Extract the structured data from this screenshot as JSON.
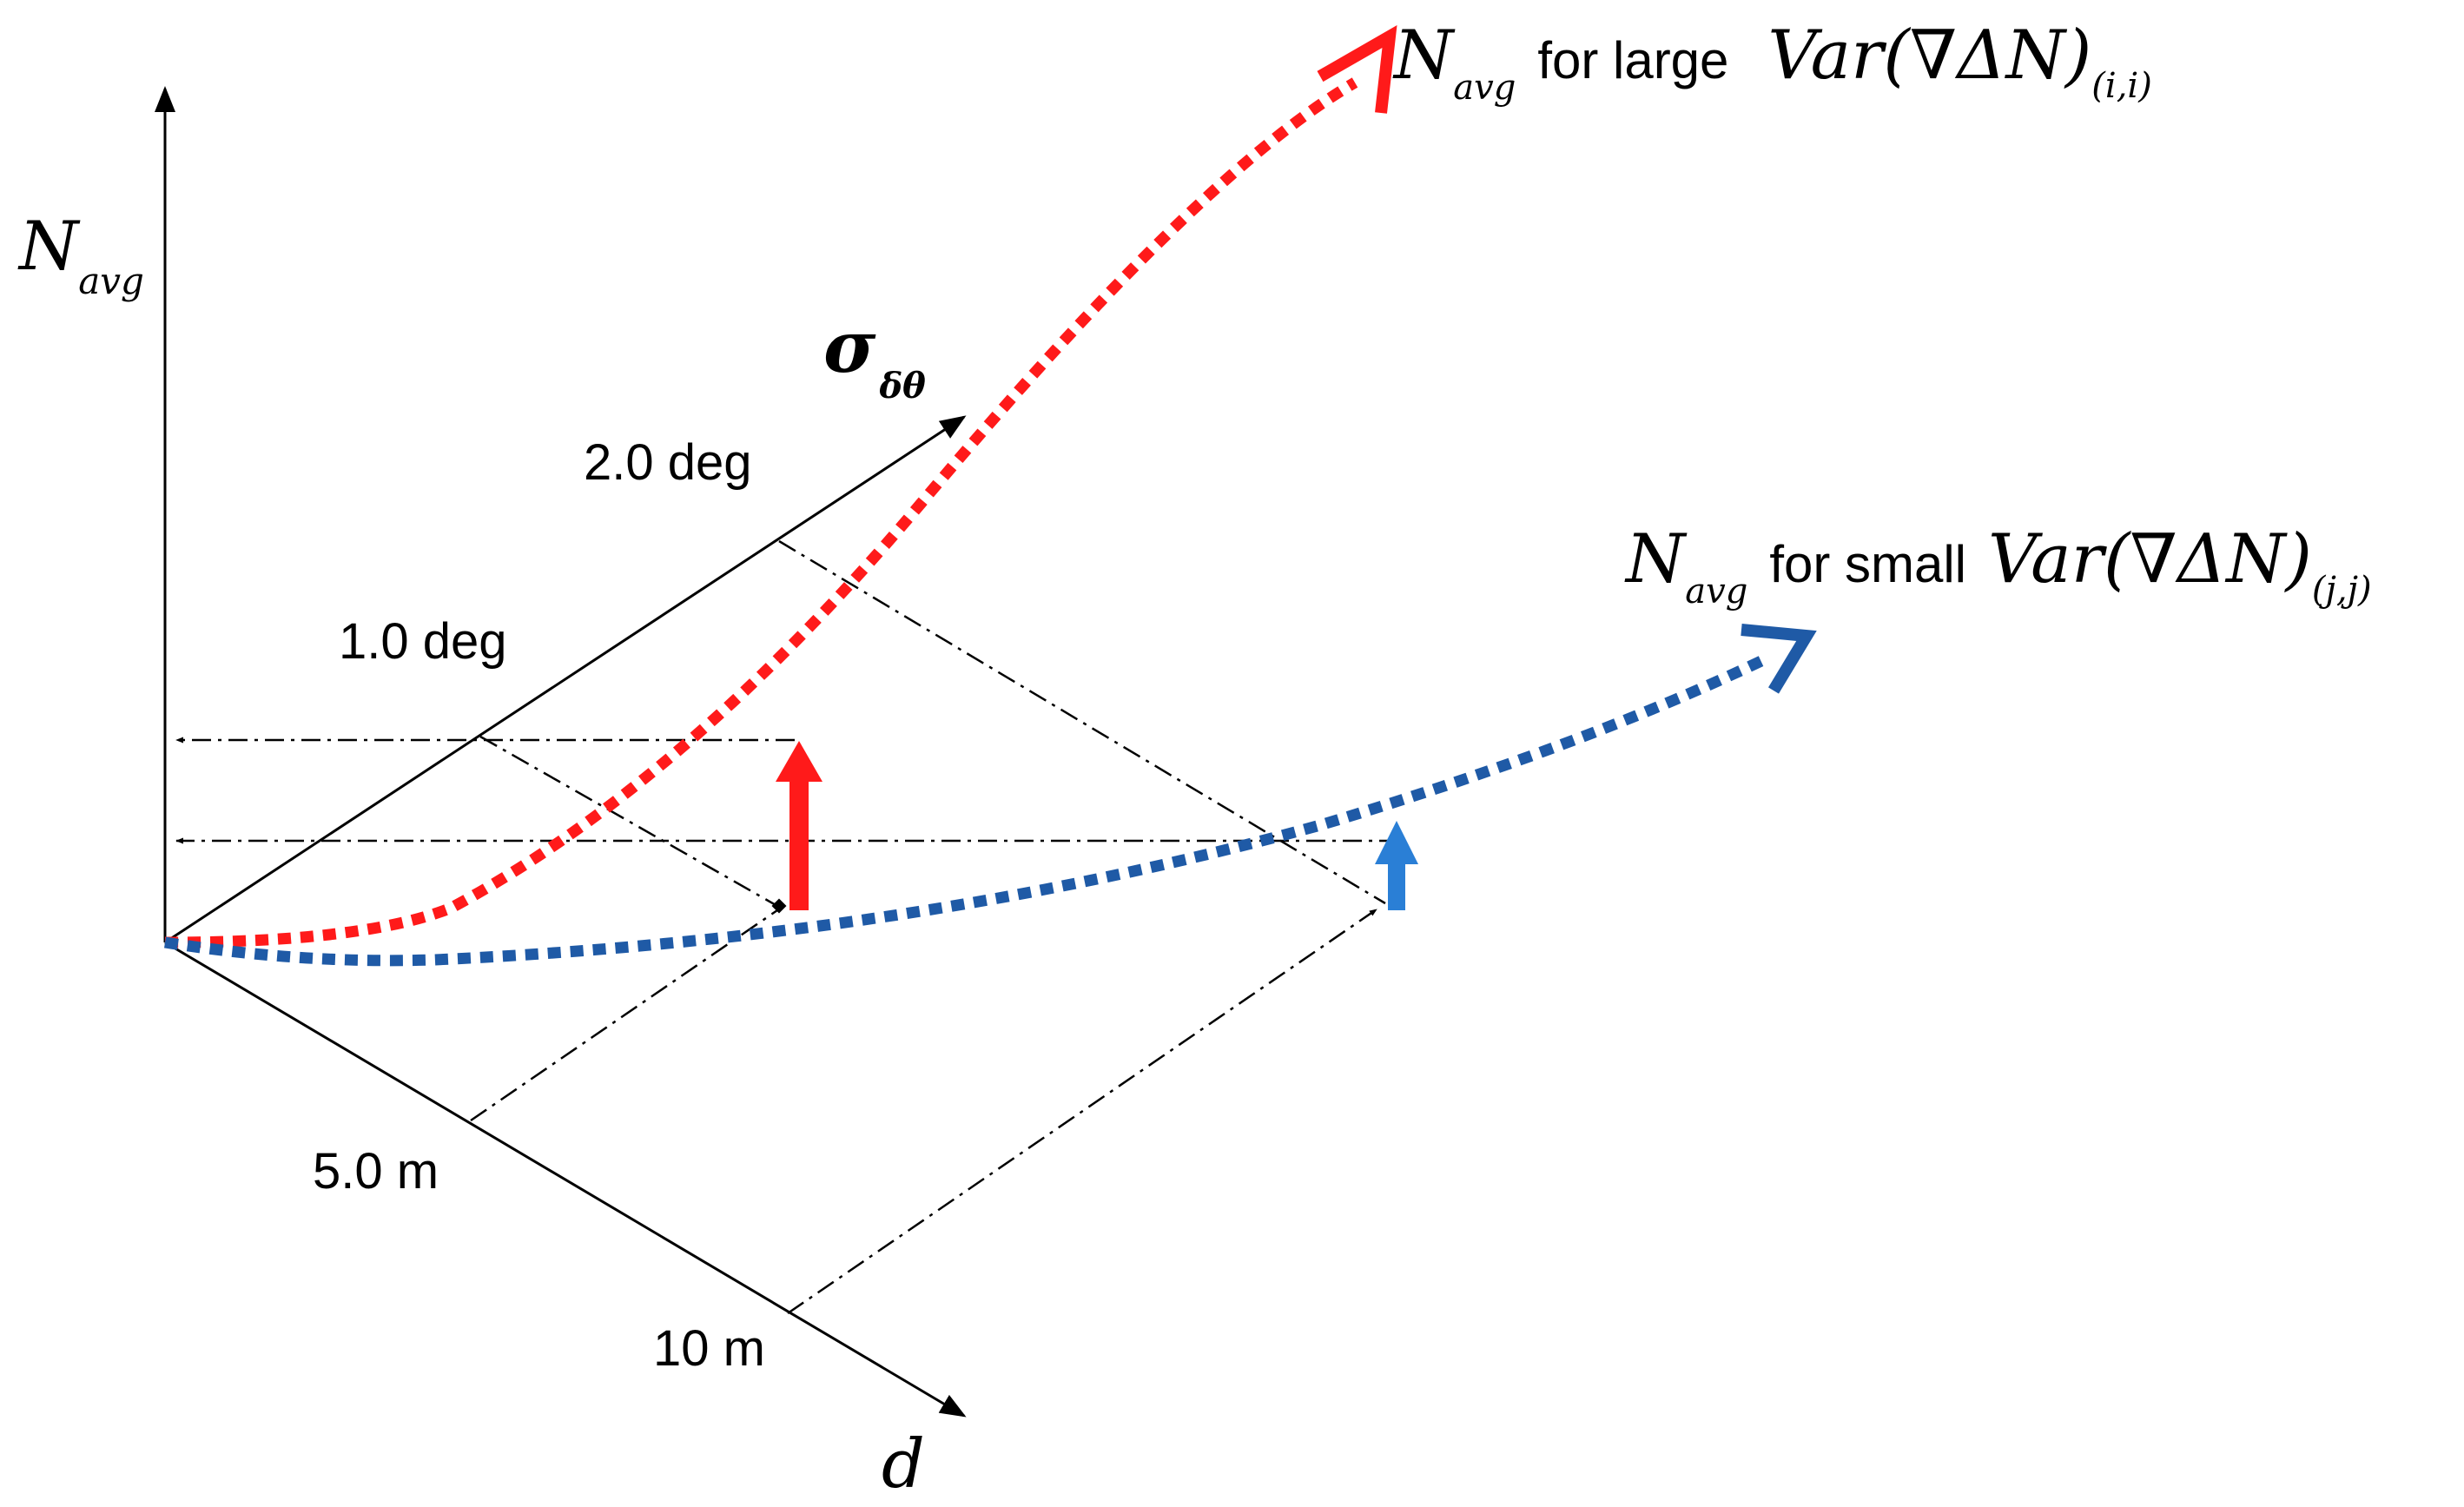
{
  "axes": {
    "vertical": {
      "symbol": "N",
      "subscript": "avg"
    },
    "angle": {
      "symbol": "σ",
      "subscript": "δθ",
      "ticks": [
        "1.0 deg",
        "2.0 deg"
      ]
    },
    "distance": {
      "symbol": "d",
      "ticks": [
        "5.0 m",
        "10 m"
      ]
    }
  },
  "curves": {
    "large": {
      "color": "#ff1a1a",
      "symbol": "N",
      "subscript": "avg",
      "text": "for large",
      "var_prefix": "Var(∇ΔN)",
      "var_sub": "(i,i)"
    },
    "small": {
      "color": "#1f5aa6",
      "symbol": "N",
      "subscript": "avg",
      "text": "for small",
      "var_prefix": "Var(∇ΔN)",
      "var_sub": "(j,j)"
    }
  },
  "arrows": {
    "red_up_color": "#ff1a1a",
    "blue_up_color": "#2a7fd6"
  }
}
